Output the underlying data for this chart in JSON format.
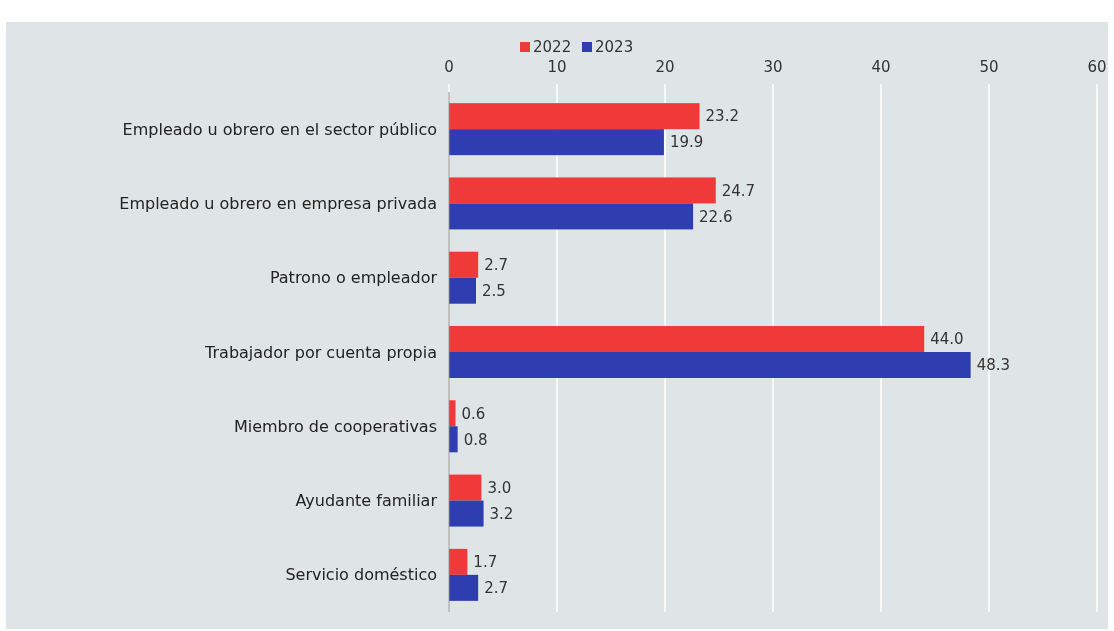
{
  "chart_data": {
    "type": "bar",
    "orientation": "horizontal",
    "categories": [
      "Empleado u obrero en el sector público",
      "Empleado u obrero en empresa privada",
      "Patrono o empleador",
      "Trabajador por cuenta propia",
      "Miembro de cooperativas",
      "Ayudante familiar",
      "Servicio doméstico"
    ],
    "series": [
      {
        "name": "2022",
        "color": "#f03a3a",
        "values": [
          23.2,
          24.7,
          2.7,
          44.0,
          0.6,
          3.0,
          1.7
        ],
        "value_labels": [
          "23.2",
          "24.7",
          "2.7",
          "44.0",
          "0.6",
          "3.0",
          "1.7"
        ]
      },
      {
        "name": "2023",
        "color": "#2e3db0",
        "values": [
          19.9,
          22.6,
          2.5,
          48.3,
          0.8,
          3.2,
          2.7
        ],
        "value_labels": [
          "19.9",
          "22.6",
          "2.5",
          "48.3",
          "0.8",
          "3.2",
          "2.7"
        ]
      }
    ],
    "xlim": [
      0,
      60
    ],
    "xticks": [
      0,
      10,
      20,
      30,
      40,
      50,
      60
    ],
    "grid": "x",
    "legend": "top"
  }
}
